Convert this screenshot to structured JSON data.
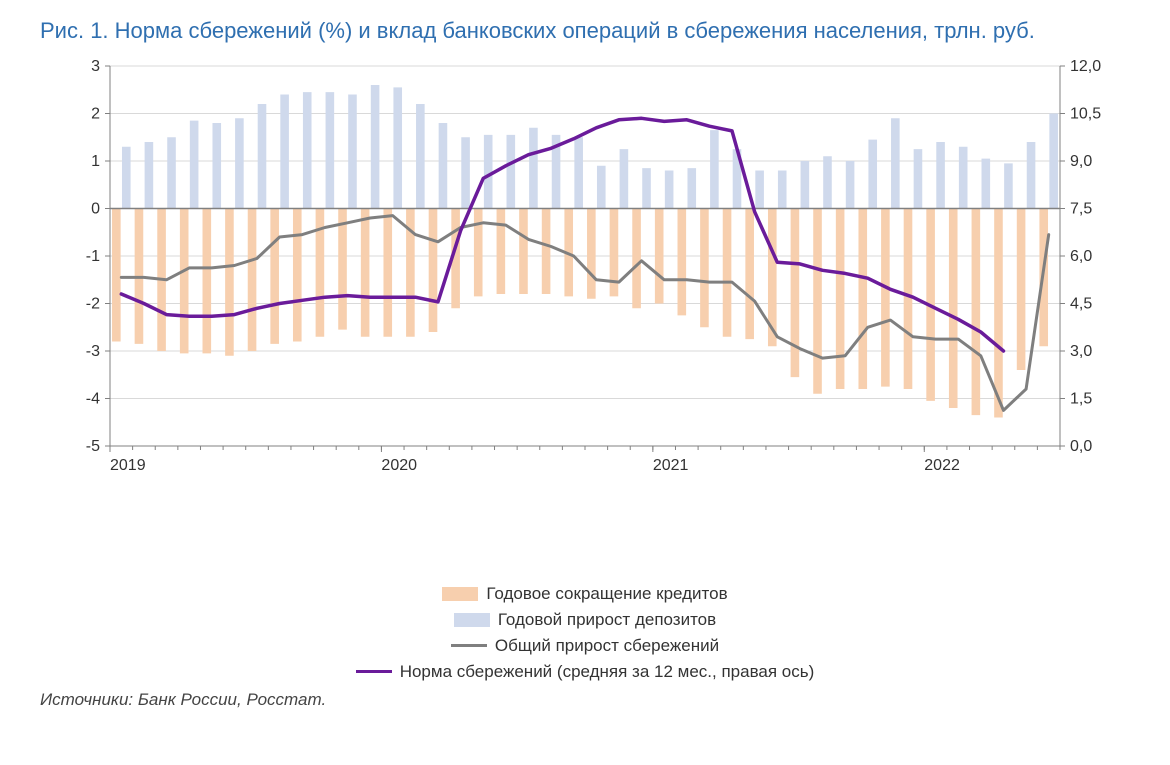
{
  "title": "Рис. 1. Норма сбережений (%) и вклад банковских операций в сбережения населения, трлн. руб.",
  "source": "Источники: Банк России, Росстат.",
  "chart": {
    "type": "bar+line-dual-axis",
    "background_color": "#ffffff",
    "grid_color": "#d9d9d9",
    "axis_color": "#808080",
    "tick_fontsize": 16,
    "n_points": 42,
    "x": {
      "major_ticks": [
        0,
        12,
        24,
        36
      ],
      "major_labels": [
        "2019",
        "2020",
        "2021",
        "2022"
      ]
    },
    "left_axis": {
      "min": -5,
      "max": 3,
      "step": 1,
      "ticks": [
        -5,
        -4,
        -3,
        -2,
        -1,
        0,
        1,
        2,
        3
      ]
    },
    "right_axis": {
      "min": 0,
      "max": 12,
      "step": 1.5,
      "ticks": [
        0.0,
        1.5,
        3.0,
        4.5,
        6.0,
        7.5,
        9.0,
        10.5,
        12.0
      ],
      "tick_labels": [
        "0,0",
        "1,5",
        "3,0",
        "4,5",
        "6,0",
        "7,5",
        "9,0",
        "10,5",
        "12,0"
      ]
    },
    "series": {
      "credits": {
        "label": "Годовое сокращение кредитов",
        "type": "bar",
        "color": "#f7cfae",
        "bar_width": 0.38,
        "offset": -0.22,
        "axis": "left",
        "values": [
          -2.8,
          -2.85,
          -3.0,
          -3.05,
          -3.05,
          -3.1,
          -3.0,
          -2.85,
          -2.8,
          -2.7,
          -2.55,
          -2.7,
          -2.7,
          -2.7,
          -2.6,
          -2.1,
          -1.85,
          -1.8,
          -1.8,
          -1.8,
          -1.85,
          -1.9,
          -1.85,
          -2.1,
          -2.0,
          -2.25,
          -2.5,
          -2.7,
          -2.75,
          -2.9,
          -3.55,
          -3.9,
          -3.8,
          -3.8,
          -3.75,
          -3.8,
          -4.05,
          -4.2,
          -4.35,
          -4.4,
          -3.4,
          -2.9
        ]
      },
      "deposits": {
        "label": "Годовой прирост депозитов",
        "type": "bar",
        "color": "#cfd9ec",
        "bar_width": 0.38,
        "offset": 0.22,
        "axis": "left",
        "values": [
          1.3,
          1.4,
          1.5,
          1.85,
          1.8,
          1.9,
          2.2,
          2.4,
          2.45,
          2.45,
          2.4,
          2.6,
          2.55,
          2.2,
          1.8,
          1.5,
          1.55,
          1.55,
          1.7,
          1.55,
          1.5,
          0.9,
          1.25,
          0.85,
          0.8,
          0.85,
          1.65,
          1.25,
          0.8,
          0.8,
          1.0,
          1.1,
          1.0,
          1.45,
          1.9,
          1.25,
          1.4,
          1.3,
          1.05,
          0.95,
          1.4,
          2.0
        ]
      },
      "savings_growth": {
        "label": "Общий прирост сбережений",
        "type": "line",
        "color": "#7f7f7f",
        "line_width": 3,
        "axis": "left",
        "values": [
          -1.45,
          -1.45,
          -1.5,
          -1.25,
          -1.25,
          -1.2,
          -1.05,
          -0.6,
          -0.55,
          -0.4,
          -0.3,
          -0.2,
          -0.15,
          -0.55,
          -0.7,
          -0.4,
          -0.3,
          -0.35,
          -0.65,
          -0.8,
          -1.0,
          -1.5,
          -1.55,
          -1.1,
          -1.5,
          -1.5,
          -1.55,
          -1.55,
          -1.95,
          -2.7,
          -2.95,
          -3.15,
          -3.1,
          -2.5,
          -2.35,
          -2.7,
          -2.75,
          -2.75,
          -3.1,
          -4.25,
          -3.8,
          -0.55
        ]
      },
      "savings_rate": {
        "label": "Норма сбережений (средняя за 12 мес., правая ось)",
        "type": "line",
        "color": "#6a1b9a",
        "line_width": 3.5,
        "axis": "right",
        "values": [
          4.8,
          4.5,
          4.15,
          4.1,
          4.1,
          4.15,
          4.35,
          4.5,
          4.6,
          4.7,
          4.75,
          4.7,
          4.7,
          4.7,
          4.55,
          6.8,
          8.45,
          8.85,
          9.2,
          9.4,
          9.7,
          10.05,
          10.3,
          10.35,
          10.25,
          10.3,
          10.1,
          9.95,
          7.4,
          5.8,
          5.75,
          5.55,
          5.45,
          5.3,
          4.95,
          4.7,
          4.35,
          4.0,
          3.6,
          3.0,
          null,
          null
        ]
      }
    },
    "legend_order": [
      "credits",
      "deposits",
      "savings_growth",
      "savings_rate"
    ]
  }
}
